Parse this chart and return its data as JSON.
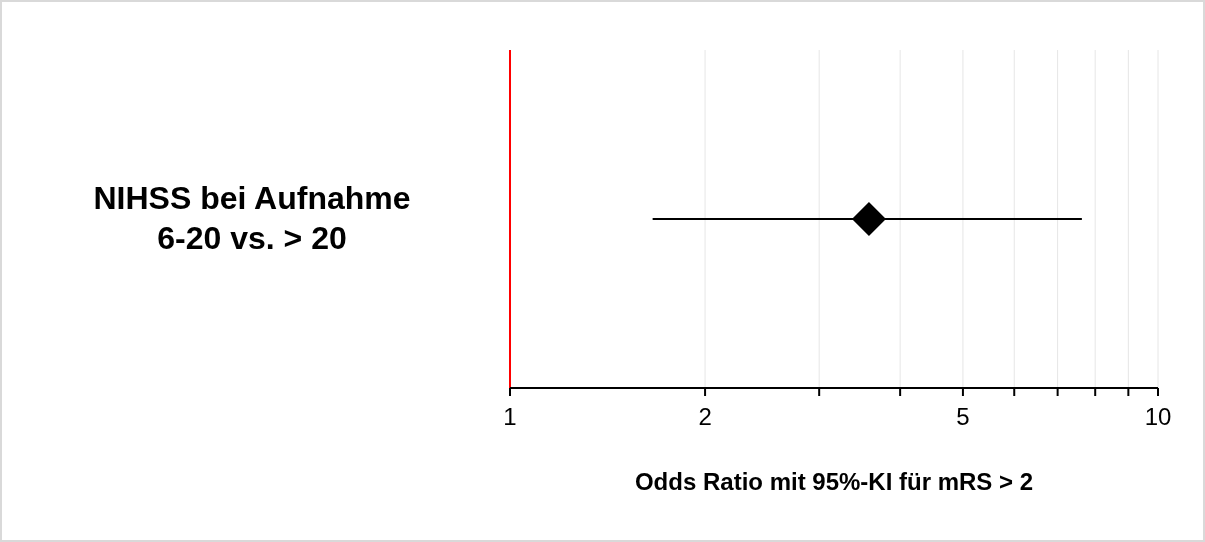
{
  "chart_data": {
    "type": "scatter",
    "orientation": "horizontal",
    "categories": [
      "NIHSS bei Aufnahme 6-20 vs. > 20"
    ],
    "values": [
      3.58
    ],
    "errors": [
      [
        1.66,
        7.63
      ]
    ],
    "color": "#000000",
    "marker": "diamond",
    "log": "x",
    "xlim": [
      1,
      10
    ],
    "xticks": [
      1,
      2,
      {
        "value": 3,
        "label": null
      },
      {
        "value": 4,
        "label": null
      },
      5,
      {
        "value": 6,
        "label": null
      },
      {
        "value": 7,
        "label": null
      },
      {
        "value": 8,
        "label": null
      },
      {
        "value": 9,
        "label": null
      },
      10
    ],
    "grid": "x",
    "xlabel": "Odds Ratio mit 95%-KI für mRS > 2",
    "ref_lines": [
      {
        "axis": "x",
        "value": 1,
        "label": null,
        "color": "#ff0000"
      }
    ]
  }
}
